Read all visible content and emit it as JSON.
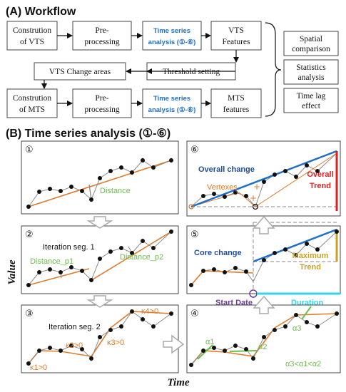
{
  "section_a": {
    "title": "(A) Workflow",
    "boxes": {
      "construction_vts": [
        "Constrution",
        "of VTS"
      ],
      "preprocessing_1": [
        "Pre-",
        "processing"
      ],
      "tsa_1": [
        "Time series",
        "analysis (①-⑥)"
      ],
      "vts_features": [
        "VTS",
        "Features"
      ],
      "vts_change_areas": [
        "VTS Change areas"
      ],
      "threshold_setting": [
        "Threshold setting"
      ],
      "construction_mts": [
        "Constrution",
        "of MTS"
      ],
      "preprocessing_2": [
        "Pre-",
        "processing"
      ],
      "tsa_2": [
        "Time series",
        "analysis (①-⑥)"
      ],
      "mts_features": [
        "MTS",
        "features"
      ],
      "spatial_comparison": [
        "Spatial",
        "comparison"
      ],
      "statistics_analysis": [
        "Statistics",
        "analysis"
      ],
      "time_lag_effect": [
        "Time lag",
        "effect"
      ]
    }
  },
  "section_b": {
    "title": "(B) Time series analysis (①-⑥)",
    "y_axis_label": "Value",
    "x_axis_label": "Time",
    "panels": {
      "p1": {
        "num": "①",
        "distance": "Distance"
      },
      "p2": {
        "num": "②",
        "iteration": "Iteration seg. 1",
        "dist_p1": "Distance_p1",
        "dist_p2": "Distance_p2"
      },
      "p3": {
        "num": "③",
        "iteration": "Iteration seg. 2",
        "k1": "κ1>0",
        "k2": "κ2>0",
        "k3": "κ3>0",
        "k4": "κ4>0"
      },
      "p6": {
        "num": "⑥",
        "overall_change": "Overall change",
        "vertexes": "Vertexes",
        "overall_trend": [
          "Overall",
          "Trend"
        ]
      },
      "p5": {
        "num": "⑤",
        "core_change": "Core change",
        "maximum_trend": [
          "Maximum",
          "Trend"
        ]
      },
      "between": {
        "start_date": "Start Date",
        "duration": "Duration"
      },
      "p4": {
        "num": "④",
        "a1": "α1",
        "a2": "α2",
        "a3": "α3",
        "relation": "α3<α1<α2"
      }
    }
  },
  "colors": {
    "orange": "#e07b2a",
    "blue": "#1f6fc8",
    "red": "#e02020",
    "green": "#6abf4b",
    "gold": "#c9a227",
    "cyan": "#33d6e8",
    "purple": "#6a3d9a",
    "dark_blue": "#1f4e9b",
    "gray": "#8a8a8a"
  }
}
